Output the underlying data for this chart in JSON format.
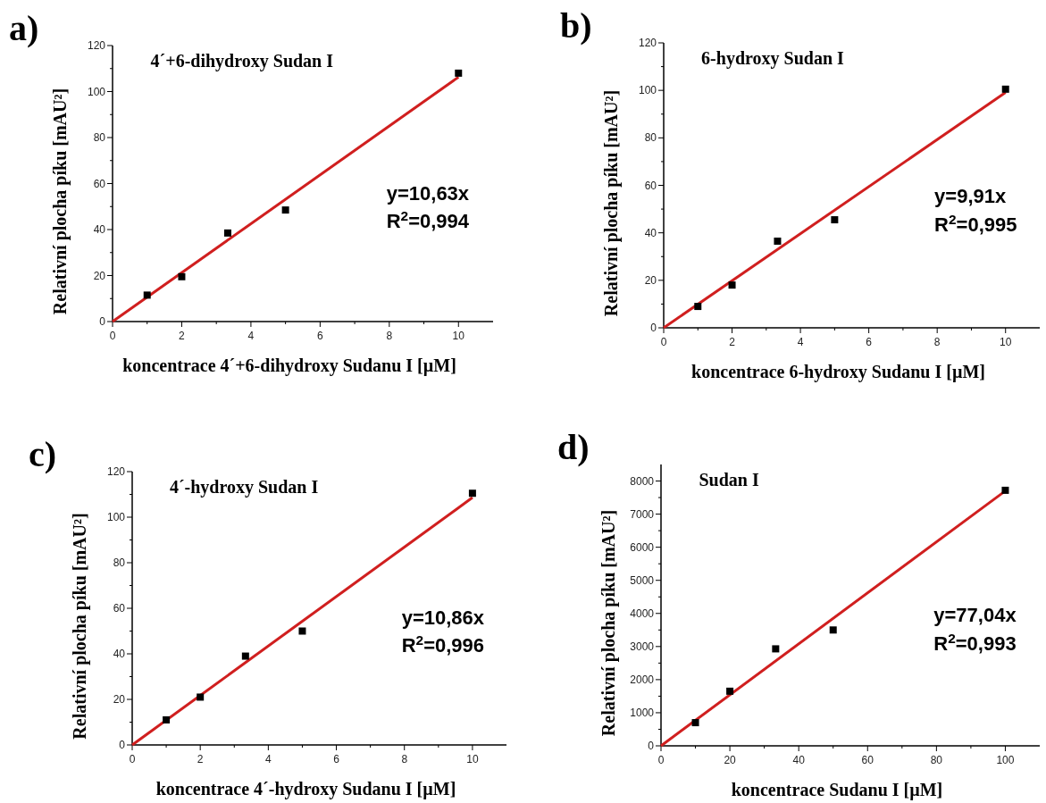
{
  "chart_data": [
    {
      "type": "scatter",
      "title": "4´+6-dihydroxy Sudan I",
      "xlabel": "koncentrace 4´+6-dihydroxy Sudanu I [µM]",
      "ylabel": "Relativní plocha píku [mAU²]",
      "annotations": [
        "a)",
        "y=10,63x",
        "R$^{2}$=0,994"
      ],
      "xlim": [
        0,
        11
      ],
      "ylim": [
        0,
        120
      ],
      "xticks": [
        0,
        {
          "value": 1,
          "label": null
        },
        2,
        {
          "value": 3,
          "label": null
        },
        4,
        {
          "value": 5,
          "label": null
        },
        6,
        {
          "value": 7,
          "label": null
        },
        8,
        {
          "value": 9,
          "label": null
        },
        10
      ],
      "yticks": [
        0,
        {
          "value": 10,
          "label": null
        },
        20,
        {
          "value": 30,
          "label": null
        },
        40,
        {
          "value": 50,
          "label": null
        },
        60,
        {
          "value": 70,
          "label": null
        },
        80,
        {
          "value": 90,
          "label": null
        },
        100,
        {
          "value": 110,
          "label": null
        },
        120
      ],
      "marker": "square",
      "series": [
        {
          "type": "scatter",
          "color": "#000000",
          "x": [
            1,
            2,
            3.33,
            5,
            10
          ],
          "values": [
            11.5,
            19.5,
            38.5,
            48.5,
            108
          ]
        },
        {
          "type": "line",
          "color": "#d01f1f",
          "marker": "none",
          "x": [
            0,
            10
          ],
          "values": [
            0,
            106.3
          ]
        }
      ]
    },
    {
      "type": "scatter",
      "title": "6-hydroxy Sudan I",
      "xlabel": "koncentrace 6-hydroxy Sudanu I [µM]",
      "ylabel": "Relativní plocha píku [mAU²]",
      "annotations": [
        "b)",
        "y=9,91x",
        "R$^{2}$=0,995"
      ],
      "xlim": [
        0,
        11
      ],
      "ylim": [
        0,
        120
      ],
      "xticks": [
        0,
        {
          "value": 1,
          "label": null
        },
        2,
        {
          "value": 3,
          "label": null
        },
        4,
        {
          "value": 5,
          "label": null
        },
        6,
        {
          "value": 7,
          "label": null
        },
        8,
        {
          "value": 9,
          "label": null
        },
        10
      ],
      "yticks": [
        0,
        {
          "value": 10,
          "label": null
        },
        20,
        {
          "value": 30,
          "label": null
        },
        40,
        {
          "value": 50,
          "label": null
        },
        60,
        {
          "value": 70,
          "label": null
        },
        80,
        {
          "value": 90,
          "label": null
        },
        100,
        {
          "value": 110,
          "label": null
        },
        120
      ],
      "marker": "square",
      "series": [
        {
          "type": "scatter",
          "color": "#000000",
          "x": [
            1,
            2,
            3.33,
            5,
            10
          ],
          "values": [
            9,
            18,
            36.5,
            45.5,
            100.5
          ]
        },
        {
          "type": "line",
          "color": "#d01f1f",
          "marker": "none",
          "x": [
            0,
            10
          ],
          "values": [
            0,
            99.1
          ]
        }
      ]
    },
    {
      "type": "scatter",
      "title": "4´-hydroxy Sudan I",
      "xlabel": "koncentrace 4´-hydroxy Sudanu I [µM]",
      "ylabel": "Relativní plocha píku [mAU²]",
      "annotations": [
        "c)",
        "y=10,86x",
        "R$^{2}$=0,996"
      ],
      "xlim": [
        0,
        11
      ],
      "ylim": [
        0,
        120
      ],
      "xticks": [
        0,
        {
          "value": 1,
          "label": null
        },
        2,
        {
          "value": 3,
          "label": null
        },
        4,
        {
          "value": 5,
          "label": null
        },
        6,
        {
          "value": 7,
          "label": null
        },
        8,
        {
          "value": 9,
          "label": null
        },
        10
      ],
      "yticks": [
        0,
        {
          "value": 10,
          "label": null
        },
        20,
        {
          "value": 30,
          "label": null
        },
        40,
        {
          "value": 50,
          "label": null
        },
        60,
        {
          "value": 70,
          "label": null
        },
        80,
        {
          "value": 90,
          "label": null
        },
        100,
        {
          "value": 110,
          "label": null
        },
        120
      ],
      "marker": "square",
      "series": [
        {
          "type": "scatter",
          "color": "#000000",
          "x": [
            1,
            2,
            3.33,
            5,
            10
          ],
          "values": [
            11,
            21,
            39,
            50,
            110.5
          ]
        },
        {
          "type": "line",
          "color": "#d01f1f",
          "marker": "none",
          "x": [
            0,
            10
          ],
          "values": [
            0,
            108.6
          ]
        }
      ]
    },
    {
      "type": "scatter",
      "title": "Sudan I",
      "xlabel": "koncentrace Sudanu I [µM]",
      "ylabel": "Relativní plocha píku [mAU²]",
      "annotations": [
        "d)",
        "y=77,04x",
        "R$^{2}$=0,993"
      ],
      "xlim": [
        0,
        110
      ],
      "ylim": [
        0,
        8500
      ],
      "xticks": [
        0,
        {
          "value": 10,
          "label": null
        },
        20,
        {
          "value": 30,
          "label": null
        },
        40,
        {
          "value": 50,
          "label": null
        },
        60,
        {
          "value": 70,
          "label": null
        },
        80,
        {
          "value": 90,
          "label": null
        },
        100
      ],
      "yticks": [
        0,
        {
          "value": 500,
          "label": null
        },
        1000,
        {
          "value": 1500,
          "label": null
        },
        2000,
        {
          "value": 2500,
          "label": null
        },
        3000,
        {
          "value": 3500,
          "label": null
        },
        4000,
        {
          "value": 4500,
          "label": null
        },
        5000,
        {
          "value": 5500,
          "label": null
        },
        6000,
        {
          "value": 6500,
          "label": null
        },
        7000,
        {
          "value": 7500,
          "label": null
        },
        8000
      ],
      "marker": "square",
      "series": [
        {
          "type": "scatter",
          "color": "#000000",
          "x": [
            10,
            20,
            33.3,
            50,
            100
          ],
          "values": [
            700,
            1650,
            2930,
            3500,
            7720
          ]
        },
        {
          "type": "line",
          "color": "#d01f1f",
          "marker": "none",
          "x": [
            0,
            100
          ],
          "values": [
            0,
            7700
          ]
        }
      ]
    }
  ]
}
